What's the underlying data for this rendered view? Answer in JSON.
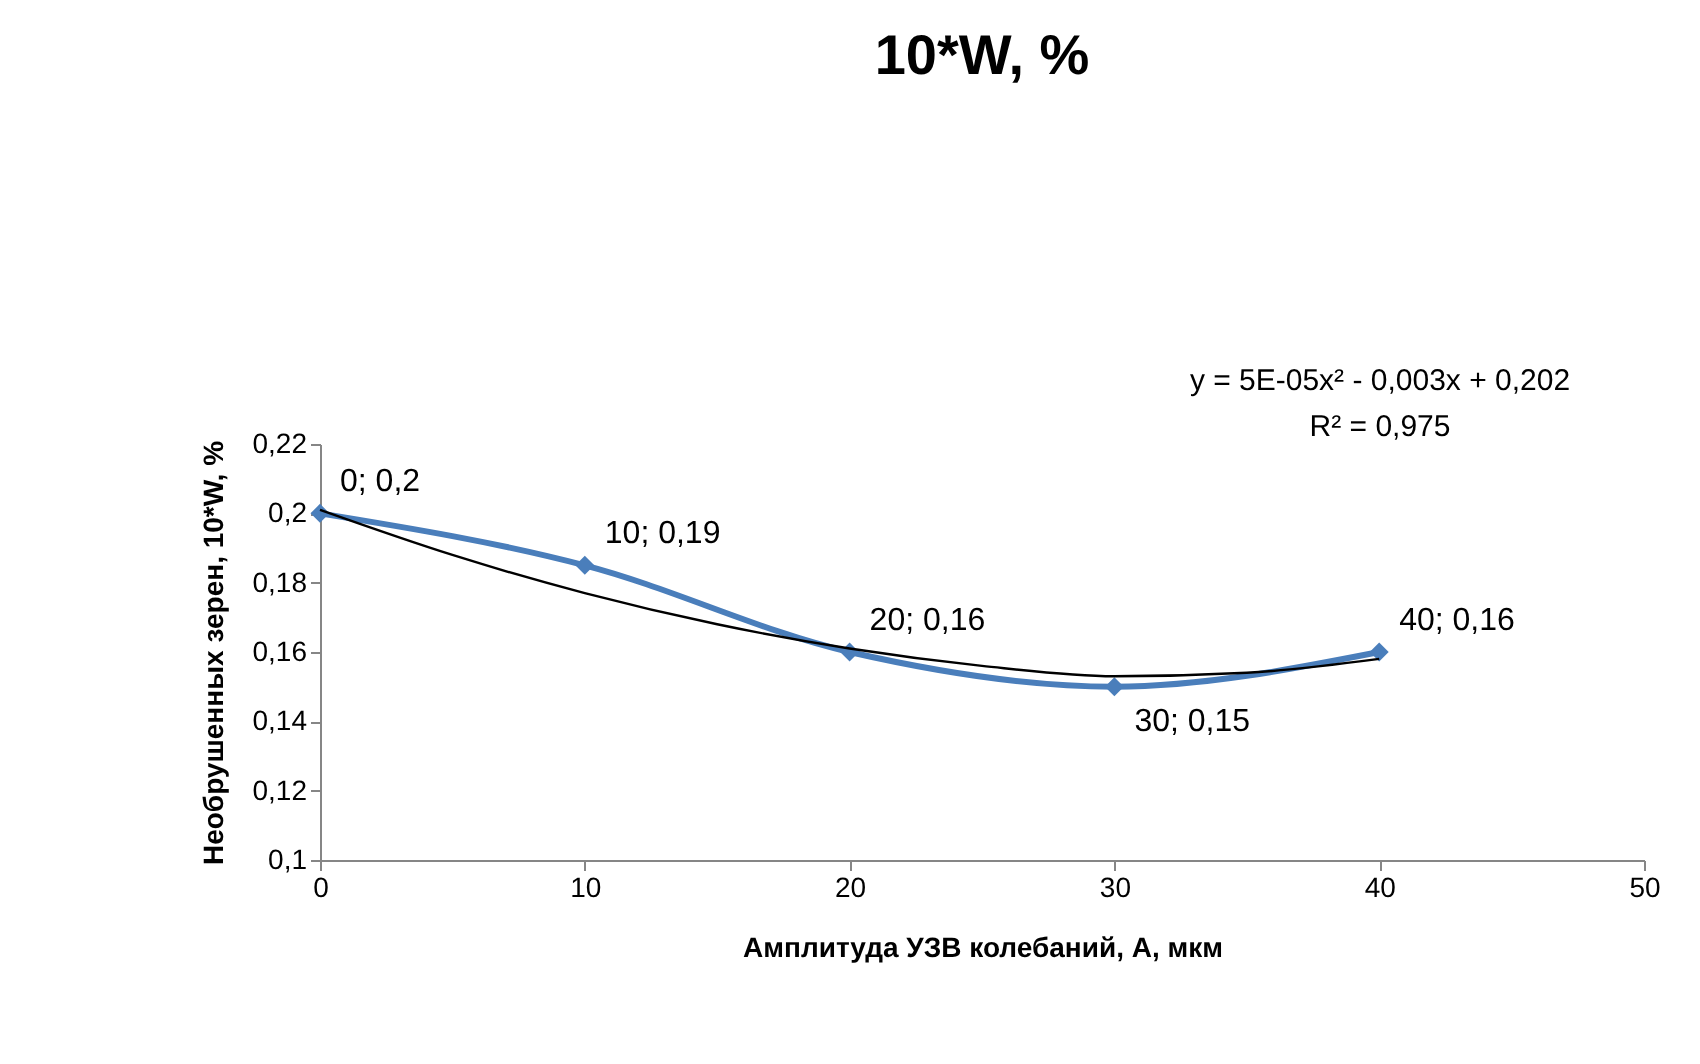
{
  "chart_data": {
    "type": "line",
    "title": "10*W, %",
    "xlabel": "Амплитуда УЗВ колебаний, А, мкм",
    "ylabel": "Необрушенных зерен, 10*W, %",
    "xlim": [
      0,
      50
    ],
    "xticks": [
      0,
      10,
      20,
      30,
      40,
      50
    ],
    "ylim": [
      0.1,
      0.22
    ],
    "yticks": [
      {
        "value": 0.1,
        "label": "0,1"
      },
      {
        "value": 0.12,
        "label": "0,12"
      },
      {
        "value": 0.14,
        "label": "0,14"
      },
      {
        "value": 0.16,
        "label": "0,16"
      },
      {
        "value": 0.18,
        "label": "0,18"
      },
      {
        "value": 0.2,
        "label": "0,2"
      },
      {
        "value": 0.22,
        "label": "0,22"
      }
    ],
    "series": [
      {
        "type": "line",
        "color": "#4a7ebb",
        "marker": "diamond",
        "x": [
          0,
          10,
          20,
          30,
          40
        ],
        "values": [
          0.2,
          0.185,
          0.16,
          0.15,
          0.16
        ],
        "value_labels": [
          "0; 0,2",
          "10; 0,19",
          "20; 0,16",
          "30; 0,15",
          "40; 0,16"
        ]
      },
      {
        "type": "line",
        "color": "#000000",
        "marker": "none",
        "x": [
          0,
          5,
          10,
          15,
          20,
          25,
          30,
          35,
          40
        ],
        "values": [
          0.201,
          0.188,
          0.177,
          0.168,
          0.161,
          0.156,
          0.153,
          0.154,
          0.158
        ]
      }
    ],
    "annotations": [
      "y = 5E-05x² - 0,003x + 0,202",
      "R² = 0,975"
    ]
  }
}
